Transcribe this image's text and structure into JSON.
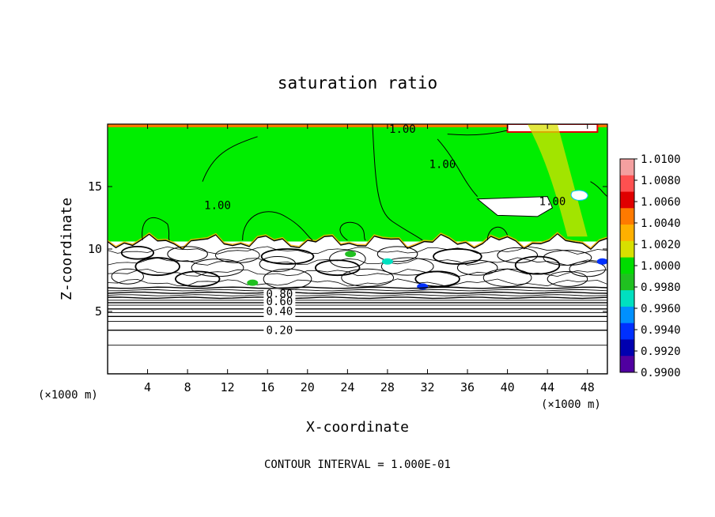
{
  "chart_data": {
    "type": "heatmap",
    "title": "saturation ratio",
    "xlabel": "X-coordinate",
    "ylabel": "Z-coordinate",
    "x_units_left": "(×1000 m)",
    "x_units_right": "(×1000 m)",
    "xlim": [
      0,
      50
    ],
    "ylim": [
      0,
      20
    ],
    "x_ticks": [
      4,
      8,
      12,
      16,
      20,
      24,
      28,
      32,
      36,
      40,
      44,
      48
    ],
    "y_ticks": [
      5,
      10,
      15
    ],
    "footer": "CONTOUR INTERVAL = 1.000E-01",
    "contour_labels": [
      {
        "text": "1.00",
        "x": 29.5,
        "z": 19.3
      },
      {
        "text": "1.00",
        "x": 33.5,
        "z": 16.5
      },
      {
        "text": "1.00",
        "x": 11.0,
        "z": 13.2
      },
      {
        "text": "1.00",
        "x": 44.5,
        "z": 13.5
      },
      {
        "text": "0.80",
        "x": 17.2,
        "z": 6.1
      },
      {
        "text": "0.60",
        "x": 17.2,
        "z": 5.5
      },
      {
        "text": "0.40",
        "x": 17.2,
        "z": 4.7
      },
      {
        "text": "0.20",
        "x": 17.2,
        "z": 3.2
      }
    ],
    "colorbar": {
      "labels": [
        "1.0100",
        "1.0080",
        "1.0060",
        "1.0040",
        "1.0020",
        "1.0000",
        "0.9980",
        "0.9960",
        "0.9940",
        "0.9920",
        "0.9900"
      ],
      "colors": [
        "#f4a0a0",
        "#ff5050",
        "#e00000",
        "#ff7a00",
        "#ffb000",
        "#d8e000",
        "#00dd00",
        "#20c020",
        "#00e0c0",
        "#0090ff",
        "#0030ff",
        "#0000b0",
        "#5000a0"
      ]
    },
    "regions": {
      "supersat_color": "#00ee00",
      "boundary_z": 10.6,
      "subsat_color": "#ffffff"
    }
  }
}
